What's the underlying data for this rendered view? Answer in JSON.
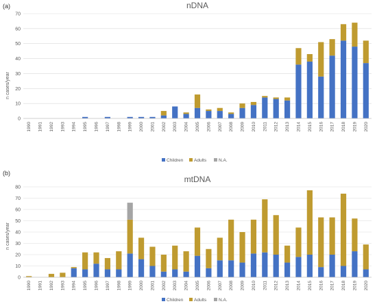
{
  "colors": {
    "children": "#4472c4",
    "adults": "#bf9b30",
    "na": "#a5a5a5"
  },
  "chart_data": [
    {
      "panel": "(a)",
      "type": "bar",
      "stacked": true,
      "title": "nDNA",
      "xlabel": "",
      "ylabel": "n cases/year",
      "ylim": [
        0,
        70
      ],
      "yticks": [
        0,
        10,
        20,
        30,
        40,
        50,
        60,
        70
      ],
      "grid": true,
      "legend_position": "bottom",
      "categories": [
        "1990",
        "1991",
        "1992",
        "1993",
        "1994",
        "1995",
        "1996",
        "1997",
        "1998",
        "1999",
        "2000",
        "2001",
        "2002",
        "2003",
        "2004",
        "2005",
        "2006",
        "2007",
        "2008",
        "2009",
        "2010",
        "2011",
        "2012",
        "2013",
        "2014",
        "2015",
        "2016",
        "2017",
        "2018",
        "2019",
        "2020"
      ],
      "series": [
        {
          "name": "Children",
          "values": [
            0,
            0,
            0,
            0,
            0,
            1,
            0,
            1,
            0,
            1,
            1,
            1,
            2,
            8,
            3,
            7,
            5,
            5,
            3,
            7,
            9,
            14,
            13,
            12,
            36,
            38,
            28,
            42,
            52,
            48,
            37
          ]
        },
        {
          "name": "Adults",
          "values": [
            0,
            0,
            0,
            0,
            0,
            0,
            0,
            0,
            0,
            0,
            0,
            0,
            3,
            0,
            1,
            9,
            1,
            2,
            1,
            3,
            2,
            1,
            1,
            2,
            11,
            5,
            23,
            11,
            11,
            16,
            15
          ]
        },
        {
          "name": "N.A.",
          "values": [
            0,
            0,
            0,
            0,
            0,
            0,
            0,
            0,
            0,
            0,
            0,
            0,
            0,
            0,
            0,
            0,
            0,
            0,
            0,
            0,
            0,
            0,
            0,
            0,
            0,
            0,
            0,
            0,
            0,
            0,
            0
          ]
        }
      ]
    },
    {
      "panel": "(b)",
      "type": "bar",
      "stacked": true,
      "title": "mtDNA",
      "xlabel": "",
      "ylabel": "n cases/year",
      "ylim": [
        0,
        80
      ],
      "yticks": [
        0,
        10,
        20,
        30,
        40,
        50,
        60,
        70,
        80
      ],
      "grid": true,
      "legend_position": "bottom",
      "categories": [
        "1990",
        "1991",
        "1992",
        "1993",
        "1994",
        "1995",
        "1996",
        "1997",
        "1998",
        "1999",
        "2000",
        "2001",
        "2002",
        "2003",
        "2004",
        "2005",
        "2006",
        "2007",
        "2008",
        "2009",
        "2010",
        "2011",
        "2012",
        "2013",
        "2014",
        "2015",
        "2016",
        "2017",
        "2018",
        "2019",
        "2020"
      ],
      "series": [
        {
          "name": "Children",
          "values": [
            0,
            0,
            0,
            0,
            8,
            7,
            12,
            7,
            7,
            21,
            16,
            10,
            5,
            7,
            5,
            19,
            8,
            15,
            15,
            13,
            21,
            22,
            20,
            13,
            18,
            20,
            9,
            20,
            10,
            23,
            7
          ]
        },
        {
          "name": "Adults",
          "values": [
            1,
            0,
            3,
            4,
            1,
            15,
            10,
            10,
            16,
            30,
            19,
            17,
            15,
            21,
            18,
            25,
            17,
            20,
            36,
            27,
            30,
            47,
            35,
            15,
            26,
            57,
            44,
            33,
            64,
            29,
            22
          ]
        },
        {
          "name": "N.A.",
          "values": [
            0,
            0,
            0,
            0,
            0,
            0,
            0,
            0,
            0,
            15,
            0,
            0,
            0,
            0,
            0,
            0,
            0,
            0,
            0,
            0,
            0,
            0,
            0,
            0,
            0,
            0,
            0,
            0,
            0,
            0,
            0
          ]
        }
      ]
    }
  ]
}
